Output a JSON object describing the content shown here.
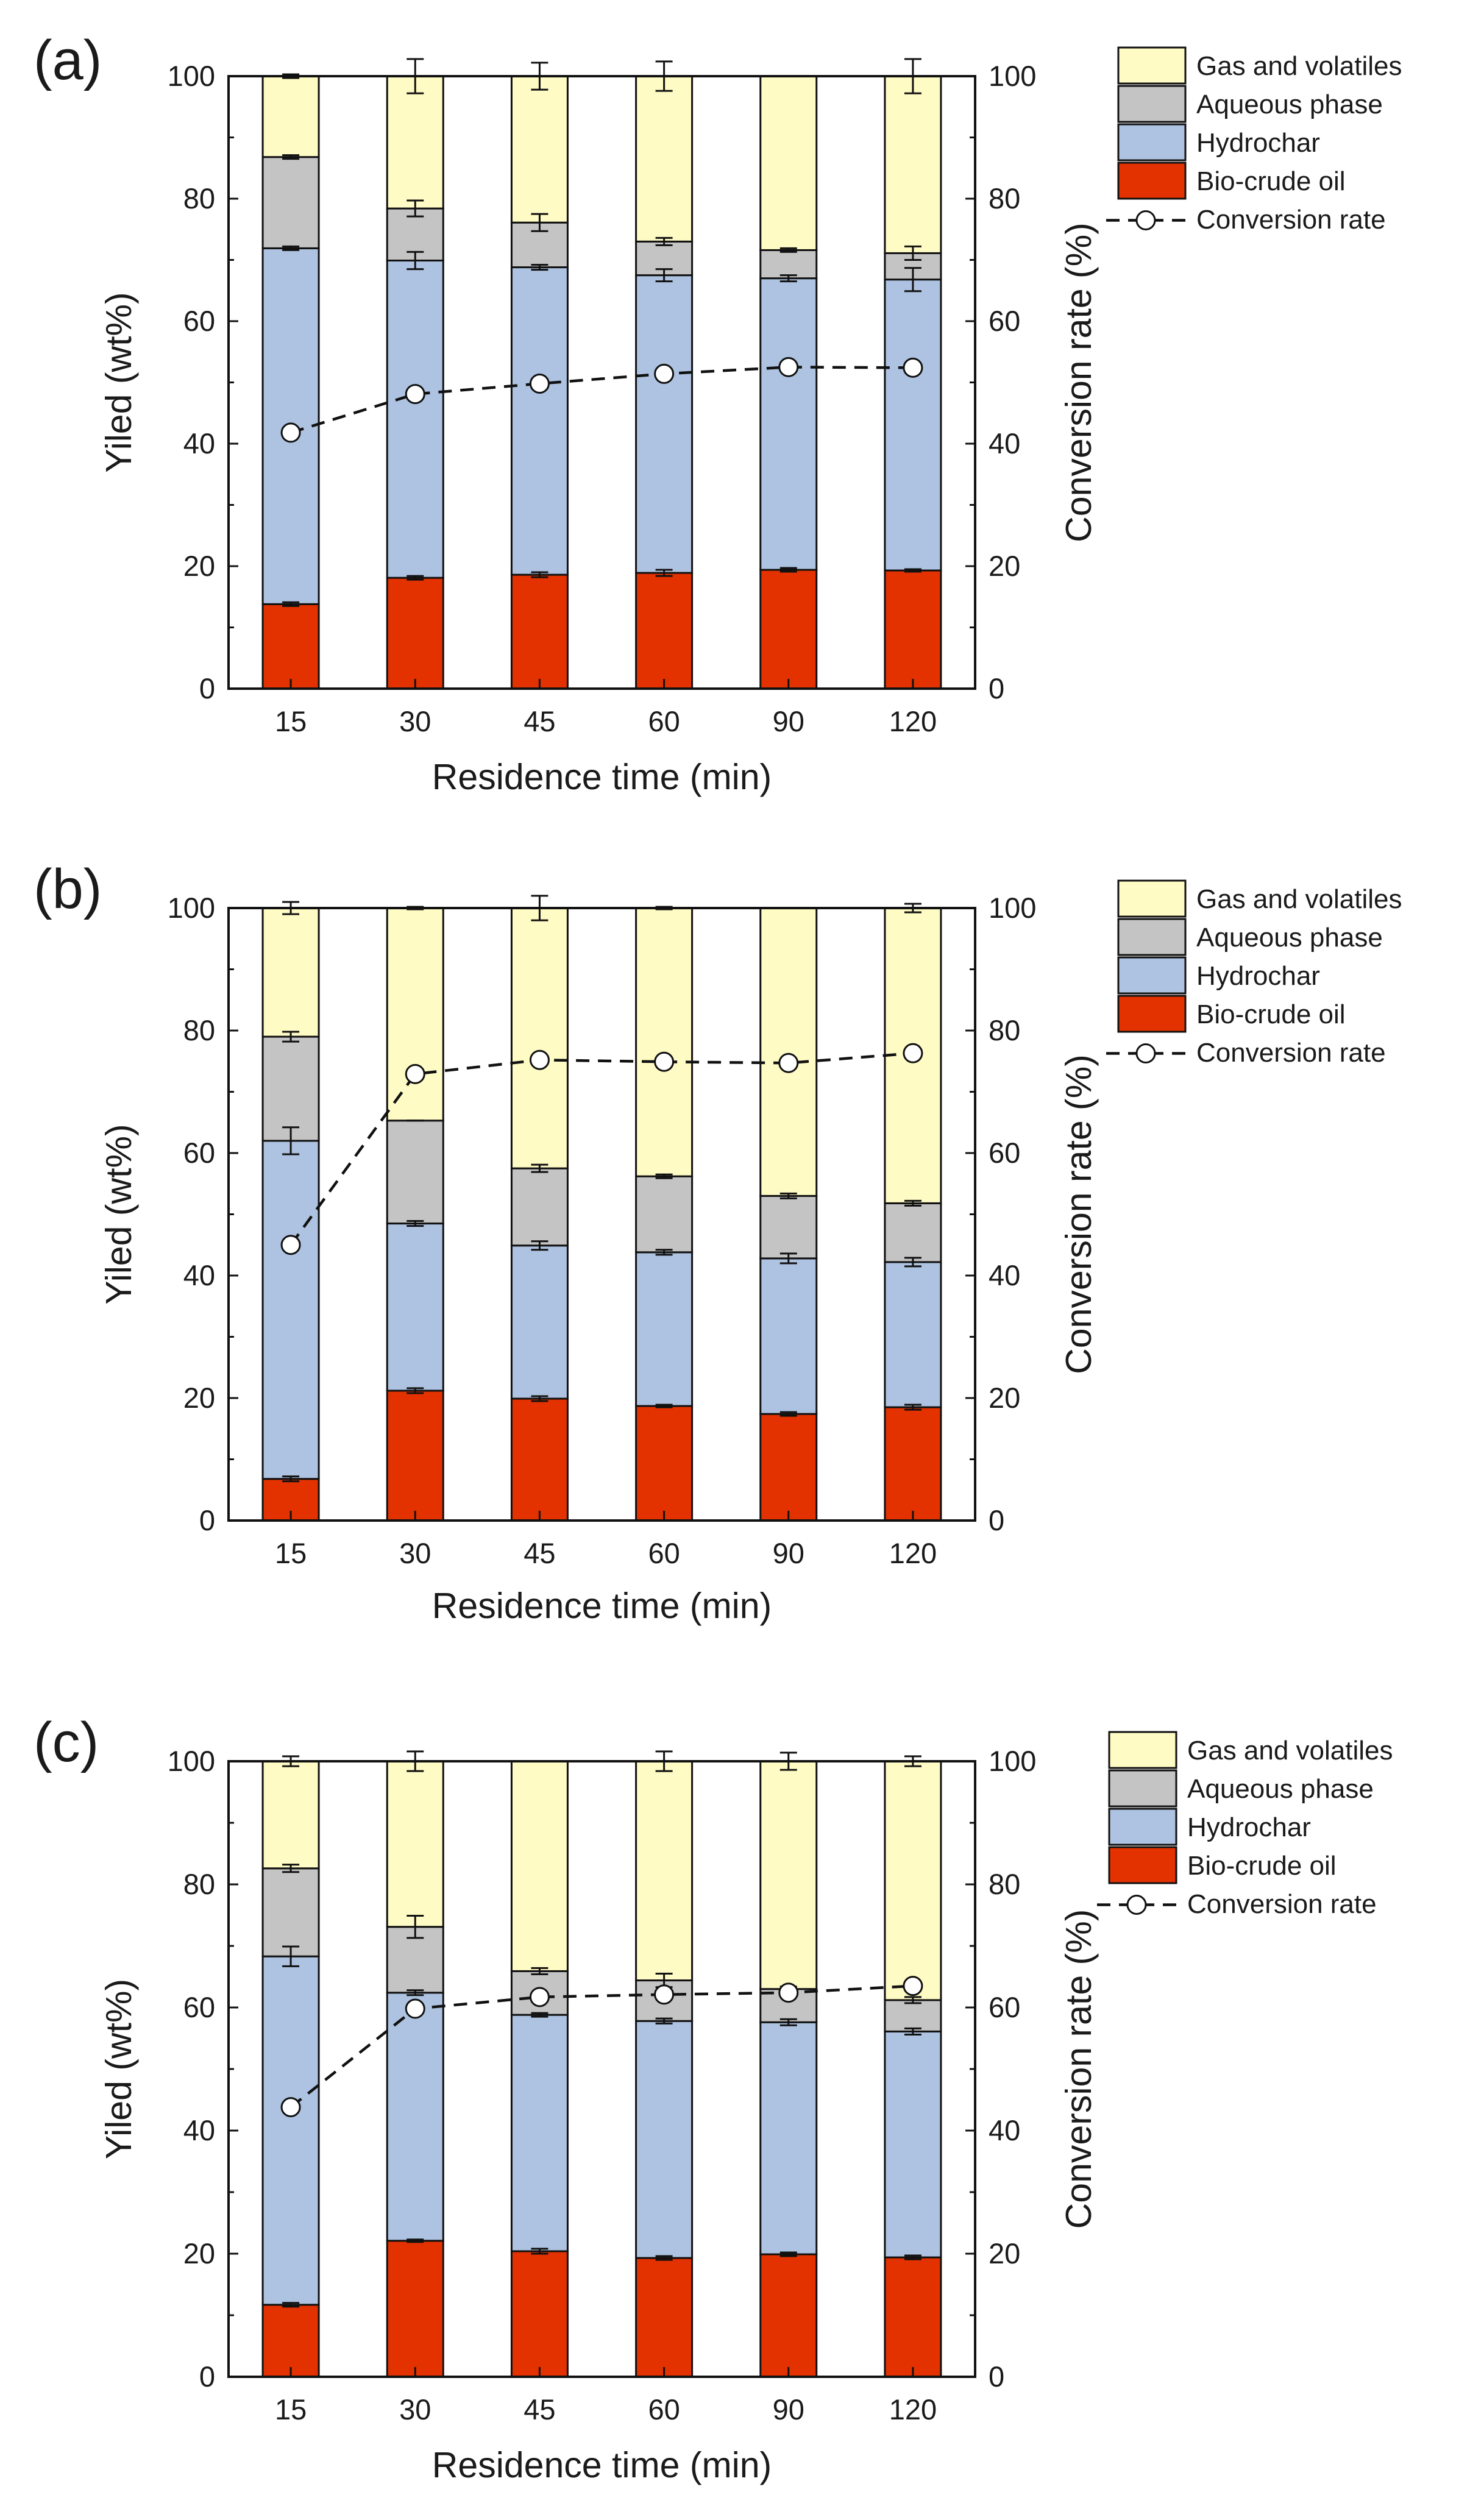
{
  "chart_data": [
    {
      "panel_label": "(a)",
      "type": "bar",
      "stacked": true,
      "title": "",
      "xlabel": "Residence time (min)",
      "ylabel": "Yiled (wt%)",
      "y2label": "Conversion rate (%)",
      "ylim": [
        0,
        100
      ],
      "y2lim": [
        0,
        100
      ],
      "yticks": [
        "0",
        "20",
        "40",
        "60",
        "80",
        "100"
      ],
      "categories": [
        "15",
        "30",
        "45",
        "60",
        "90",
        "120"
      ],
      "series": [
        {
          "name": "Bio-crude oil",
          "color": "#e33200",
          "values": [
            13.8,
            18.1,
            18.6,
            18.9,
            19.4,
            19.3
          ],
          "errors": [
            0.3,
            0.3,
            0.4,
            0.5,
            0.3,
            0.2
          ]
        },
        {
          "name": "Hydrochar",
          "color": "#aec3e1",
          "values": [
            58.1,
            51.8,
            50.2,
            48.6,
            47.6,
            47.5
          ],
          "errors": [
            0.3,
            1.4,
            0.4,
            1.0,
            0.5,
            1.9
          ]
        },
        {
          "name": "Aqueous phase",
          "color": "#c4c4c4",
          "values": [
            14.9,
            8.5,
            7.3,
            5.5,
            4.6,
            4.3
          ],
          "errors": [
            0.3,
            1.3,
            1.4,
            0.6,
            0.3,
            1.1
          ]
        },
        {
          "name": "Gas and volatiles",
          "color": "#fffbc4",
          "values": [
            13.2,
            21.6,
            23.9,
            27.0,
            28.4,
            28.9
          ],
          "errors": [
            0.3,
            2.8,
            2.2,
            2.4,
            0.0,
            2.8
          ]
        }
      ],
      "line_series": {
        "name": "Conversion rate",
        "values": [
          41.8,
          48.1,
          49.8,
          51.4,
          52.5,
          52.4
        ]
      },
      "legend": [
        "Gas and volatiles",
        "Aqueous phase",
        "Hydrochar",
        "Bio-crude oil",
        "Conversion rate"
      ],
      "legend_position": "top-right, outside plot"
    },
    {
      "panel_label": "(b)",
      "type": "bar",
      "stacked": true,
      "title": "",
      "xlabel": "Residence time (min)",
      "ylabel": "Yiled (wt%)",
      "y2label": "Conversion rate (%)",
      "ylim": [
        0,
        100
      ],
      "y2lim": [
        0,
        100
      ],
      "yticks": [
        "0",
        "20",
        "40",
        "60",
        "80",
        "100"
      ],
      "categories": [
        "15",
        "30",
        "45",
        "60",
        "90",
        "120"
      ],
      "series": [
        {
          "name": "Bio-crude oil",
          "color": "#e33200",
          "values": [
            6.8,
            21.2,
            19.9,
            18.7,
            17.4,
            18.5
          ],
          "errors": [
            0.4,
            0.4,
            0.4,
            0.2,
            0.3,
            0.4
          ]
        },
        {
          "name": "Hydrochar",
          "color": "#aec3e1",
          "values": [
            55.2,
            27.3,
            25.0,
            25.1,
            25.4,
            23.7
          ],
          "errors": [
            2.2,
            0.4,
            0.7,
            0.4,
            0.8,
            0.7
          ]
        },
        {
          "name": "Aqueous phase",
          "color": "#c4c4c4",
          "values": [
            17.0,
            16.8,
            12.6,
            12.4,
            10.2,
            9.6
          ],
          "errors": [
            0.8,
            0.0,
            0.6,
            0.3,
            0.4,
            0.4
          ]
        },
        {
          "name": "Gas and volatiles",
          "color": "#fffbc4",
          "values": [
            21.0,
            34.7,
            42.5,
            43.8,
            47.0,
            48.2
          ],
          "errors": [
            1.0,
            0.2,
            2.0,
            0.2,
            0.0,
            0.7
          ]
        }
      ],
      "line_series": {
        "name": "Conversion rate",
        "values": [
          45.0,
          72.9,
          75.2,
          74.9,
          74.7,
          76.3
        ]
      },
      "legend": [
        "Gas and volatiles",
        "Aqueous phase",
        "Hydrochar",
        "Bio-crude oil",
        "Conversion rate"
      ],
      "legend_position": "top-right, outside plot"
    },
    {
      "panel_label": "(c)",
      "type": "bar",
      "stacked": true,
      "title": "",
      "xlabel": "Residence time (min)",
      "ylabel": "Yiled (wt%)",
      "y2label": "Conversion rate (%)",
      "ylim": [
        0,
        100
      ],
      "y2lim": [
        0,
        100
      ],
      "yticks": [
        "0",
        "20",
        "40",
        "60",
        "80",
        "100"
      ],
      "categories": [
        "15",
        "30",
        "45",
        "60",
        "90",
        "120"
      ],
      "series": [
        {
          "name": "Bio-crude oil",
          "color": "#e33200",
          "values": [
            11.7,
            22.1,
            20.4,
            19.3,
            19.9,
            19.4
          ],
          "errors": [
            0.3,
            0.2,
            0.4,
            0.3,
            0.3,
            0.3
          ]
        },
        {
          "name": "Hydrochar",
          "color": "#aec3e1",
          "values": [
            56.6,
            40.3,
            38.4,
            38.5,
            37.7,
            36.7
          ],
          "errors": [
            1.6,
            0.4,
            0.3,
            0.4,
            0.5,
            0.5
          ]
        },
        {
          "name": "Aqueous phase",
          "color": "#c4c4c4",
          "values": [
            14.3,
            10.7,
            7.1,
            6.6,
            5.4,
            5.1
          ],
          "errors": [
            0.6,
            1.8,
            0.5,
            1.1,
            0.4,
            0.5
          ]
        },
        {
          "name": "Gas and volatiles",
          "color": "#fffbc4",
          "values": [
            17.4,
            26.9,
            34.1,
            35.6,
            37.0,
            38.8
          ],
          "errors": [
            0.8,
            1.6,
            0.0,
            1.6,
            1.4,
            0.8
          ]
        }
      ],
      "line_series": {
        "name": "Conversion rate",
        "values": [
          43.8,
          59.8,
          61.7,
          62.1,
          62.4,
          63.5
        ]
      },
      "legend": [
        "Gas and volatiles",
        "Aqueous phase",
        "Hydrochar",
        "Bio-crude oil",
        "Conversion rate"
      ],
      "legend_position": "top-right, outside plot"
    }
  ]
}
